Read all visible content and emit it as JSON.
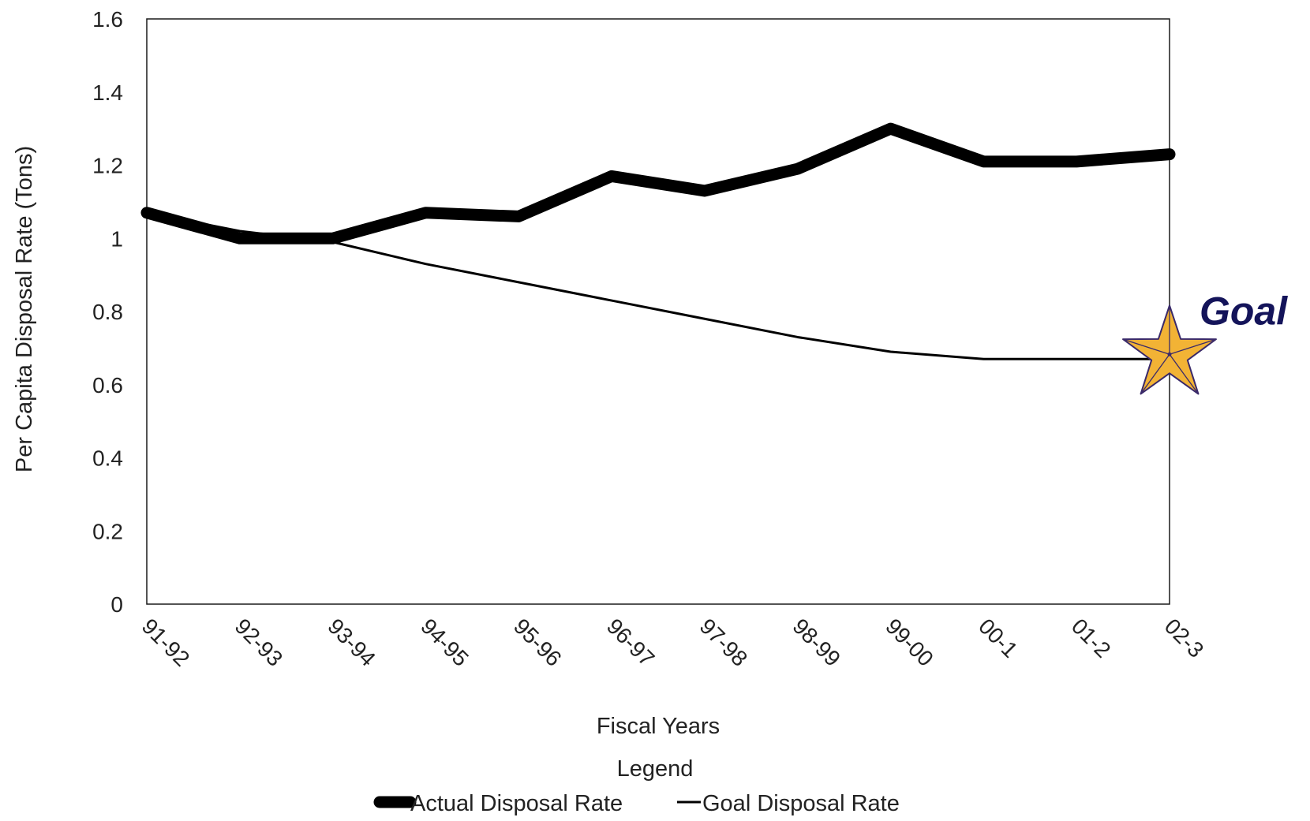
{
  "chart_data": {
    "type": "line",
    "title": "",
    "xlabel": "Fiscal Years",
    "ylabel": "Per Capita Disposal Rate (Tons)",
    "categories": [
      "91-92",
      "92-93",
      "93-94",
      "94-95",
      "95-96",
      "96-97",
      "97-98",
      "98-99",
      "99-00",
      "00-1",
      "01-2",
      "02-3"
    ],
    "y_ticks": [
      "0",
      "0.2",
      "0.4",
      "0.6",
      "0.8",
      "1",
      "1.2",
      "1.4",
      "1.6"
    ],
    "ylim": [
      0,
      1.6
    ],
    "grid": false,
    "legend_position": "bottom",
    "series": [
      {
        "name": "Actual Disposal Rate",
        "values": [
          1.07,
          1.0,
          1.0,
          1.07,
          1.06,
          1.17,
          1.13,
          1.19,
          1.3,
          1.21,
          1.21,
          1.23
        ],
        "color": "#000000",
        "style": "thick"
      },
      {
        "name": "Goal Disposal Rate",
        "values": [
          1.07,
          1.02,
          0.99,
          0.93,
          0.88,
          0.83,
          0.78,
          0.73,
          0.69,
          0.67,
          0.67,
          0.67
        ],
        "color": "#000000",
        "style": "thin"
      }
    ],
    "legend": {
      "title": "Legend"
    },
    "annotation": {
      "text": "Goal",
      "category": "02-3",
      "value": 0.67,
      "icon": "star-icon",
      "star_color": "#f2b335",
      "star_outline": "#3a2a6a",
      "text_color": "#14145a"
    }
  }
}
